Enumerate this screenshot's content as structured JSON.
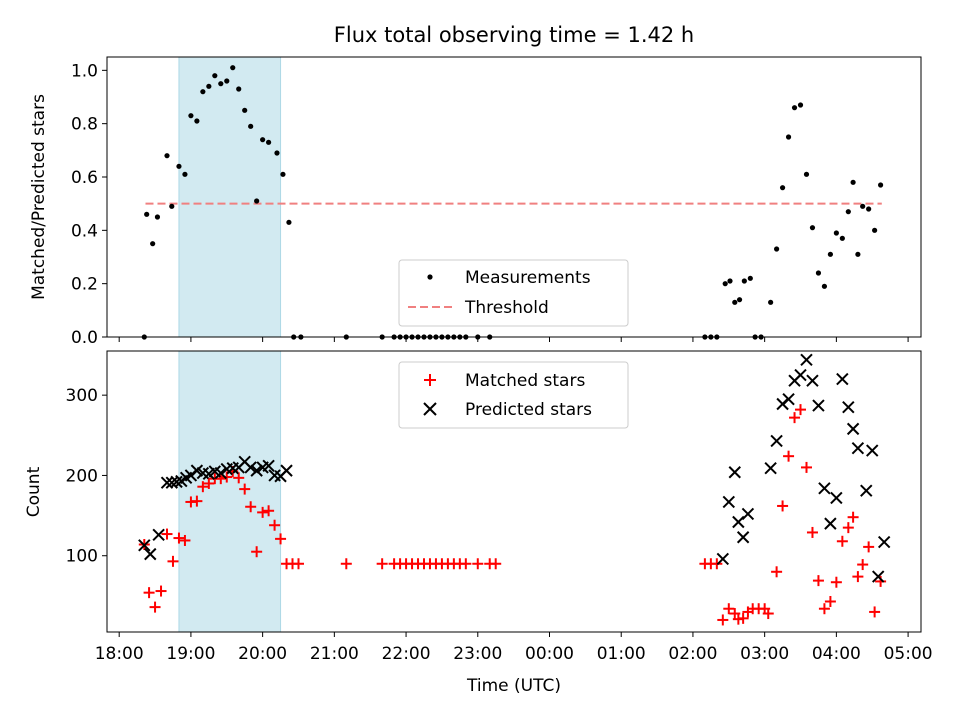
{
  "figure_title": "Flux total observing time = 1.42 h",
  "chart_data": [
    {
      "type": "scatter",
      "title": "Flux total observing time = 1.42 h",
      "xlabel": "",
      "ylabel": "Matched/Predicted stars",
      "xlim": [
        "18:00",
        "05:00"
      ],
      "ylim": [
        0,
        1.05
      ],
      "yticks": [
        "0.0",
        "0.2",
        "0.4",
        "0.6",
        "0.8",
        "1.0"
      ],
      "shaded_interval": [
        "18:50",
        "20:15"
      ],
      "shade_color": "#add8e6",
      "legend_position": "bottom-center",
      "threshold": {
        "name": "Threshold",
        "value": 0.5,
        "x_from": "18:22",
        "x_to": "04:38",
        "color": "#f08080",
        "style": "dashed"
      },
      "series": [
        {
          "name": "Measurements",
          "marker": "dot",
          "color": "#000000",
          "points": [
            [
              "18:21",
              0.0
            ],
            [
              "18:23",
              0.46
            ],
            [
              "18:28",
              0.35
            ],
            [
              "18:32",
              0.45
            ],
            [
              "18:40",
              0.68
            ],
            [
              "18:44",
              0.49
            ],
            [
              "18:50",
              0.64
            ],
            [
              "18:55",
              0.61
            ],
            [
              "19:00",
              0.83
            ],
            [
              "19:05",
              0.81
            ],
            [
              "19:10",
              0.92
            ],
            [
              "19:15",
              0.94
            ],
            [
              "19:20",
              0.98
            ],
            [
              "19:25",
              0.95
            ],
            [
              "19:30",
              0.96
            ],
            [
              "19:35",
              1.01
            ],
            [
              "19:40",
              0.93
            ],
            [
              "19:45",
              0.85
            ],
            [
              "19:50",
              0.79
            ],
            [
              "19:55",
              0.51
            ],
            [
              "20:00",
              0.74
            ],
            [
              "20:05",
              0.73
            ],
            [
              "20:12",
              0.69
            ],
            [
              "20:17",
              0.61
            ],
            [
              "20:22",
              0.43
            ],
            [
              "20:26",
              0.0
            ],
            [
              "20:32",
              0.0
            ],
            [
              "21:10",
              0.0
            ],
            [
              "21:40",
              0.0
            ],
            [
              "21:50",
              0.0
            ],
            [
              "21:55",
              0.0
            ],
            [
              "22:00",
              0.0
            ],
            [
              "22:05",
              0.0
            ],
            [
              "22:10",
              0.0
            ],
            [
              "22:15",
              0.0
            ],
            [
              "22:20",
              0.0
            ],
            [
              "22:25",
              0.0
            ],
            [
              "22:30",
              0.0
            ],
            [
              "22:35",
              0.0
            ],
            [
              "22:40",
              0.0
            ],
            [
              "22:45",
              0.0
            ],
            [
              "22:50",
              0.0
            ],
            [
              "23:00",
              0.0
            ],
            [
              "23:10",
              0.0
            ],
            [
              "02:10",
              0.0
            ],
            [
              "02:15",
              0.0
            ],
            [
              "02:20",
              0.0
            ],
            [
              "02:27",
              0.2
            ],
            [
              "02:31",
              0.21
            ],
            [
              "02:35",
              0.13
            ],
            [
              "02:39",
              0.14
            ],
            [
              "02:43",
              0.21
            ],
            [
              "02:48",
              0.22
            ],
            [
              "02:52",
              0.0
            ],
            [
              "02:57",
              0.0
            ],
            [
              "03:05",
              0.13
            ],
            [
              "03:10",
              0.33
            ],
            [
              "03:15",
              0.56
            ],
            [
              "03:20",
              0.75
            ],
            [
              "03:25",
              0.86
            ],
            [
              "03:30",
              0.87
            ],
            [
              "03:35",
              0.61
            ],
            [
              "03:40",
              0.41
            ],
            [
              "03:45",
              0.24
            ],
            [
              "03:50",
              0.19
            ],
            [
              "03:55",
              0.31
            ],
            [
              "04:00",
              0.39
            ],
            [
              "04:05",
              0.37
            ],
            [
              "04:10",
              0.47
            ],
            [
              "04:14",
              0.58
            ],
            [
              "04:18",
              0.31
            ],
            [
              "04:22",
              0.49
            ],
            [
              "04:27",
              0.48
            ],
            [
              "04:32",
              0.4
            ],
            [
              "04:37",
              0.57
            ]
          ]
        }
      ]
    },
    {
      "type": "scatter",
      "title": "",
      "xlabel": "Time (UTC)",
      "ylabel": "Count",
      "xlim": [
        "18:00",
        "05:00"
      ],
      "ylim": [
        5,
        355
      ],
      "yticks": [
        "100",
        "200",
        "300"
      ],
      "xticks": [
        "18:00",
        "19:00",
        "20:00",
        "21:00",
        "22:00",
        "23:00",
        "00:00",
        "01:00",
        "02:00",
        "03:00",
        "04:00",
        "05:00"
      ],
      "shaded_interval": [
        "18:50",
        "20:15"
      ],
      "shade_color": "#add8e6",
      "legend_position": "top-center",
      "series": [
        {
          "name": "Matched stars",
          "marker": "plus",
          "color": "#ff0000",
          "points": [
            [
              "18:21",
              114
            ],
            [
              "18:25",
              54
            ],
            [
              "18:30",
              36
            ],
            [
              "18:35",
              56
            ],
            [
              "18:40",
              127
            ],
            [
              "18:45",
              93
            ],
            [
              "18:50",
              122
            ],
            [
              "18:55",
              119
            ],
            [
              "19:00",
              167
            ],
            [
              "19:05",
              168
            ],
            [
              "19:10",
              186
            ],
            [
              "19:15",
              190
            ],
            [
              "19:20",
              196
            ],
            [
              "19:25",
              196
            ],
            [
              "19:30",
              198
            ],
            [
              "19:35",
              205
            ],
            [
              "19:40",
              197
            ],
            [
              "19:45",
              183
            ],
            [
              "19:50",
              161
            ],
            [
              "19:55",
              105
            ],
            [
              "20:00",
              154
            ],
            [
              "20:05",
              156
            ],
            [
              "20:10",
              138
            ],
            [
              "20:15",
              121
            ],
            [
              "20:20",
              90
            ],
            [
              "20:25",
              90
            ],
            [
              "20:30",
              90
            ],
            [
              "21:10",
              90
            ],
            [
              "21:40",
              90
            ],
            [
              "21:50",
              90
            ],
            [
              "21:55",
              90
            ],
            [
              "22:00",
              90
            ],
            [
              "22:05",
              90
            ],
            [
              "22:10",
              90
            ],
            [
              "22:15",
              90
            ],
            [
              "22:20",
              90
            ],
            [
              "22:25",
              90
            ],
            [
              "22:30",
              90
            ],
            [
              "22:35",
              90
            ],
            [
              "22:40",
              90
            ],
            [
              "22:45",
              90
            ],
            [
              "22:50",
              90
            ],
            [
              "23:00",
              90
            ],
            [
              "23:10",
              90
            ],
            [
              "23:15",
              90
            ],
            [
              "02:10",
              90
            ],
            [
              "02:15",
              90
            ],
            [
              "02:20",
              90
            ],
            [
              "02:25",
              20
            ],
            [
              "02:30",
              34
            ],
            [
              "02:35",
              28
            ],
            [
              "02:38",
              21
            ],
            [
              "02:42",
              22
            ],
            [
              "02:46",
              30
            ],
            [
              "02:50",
              34
            ],
            [
              "02:55",
              34
            ],
            [
              "03:00",
              34
            ],
            [
              "03:03",
              28
            ],
            [
              "03:10",
              80
            ],
            [
              "03:15",
              162
            ],
            [
              "03:20",
              224
            ],
            [
              "03:25",
              272
            ],
            [
              "03:30",
              282
            ],
            [
              "03:35",
              210
            ],
            [
              "03:40",
              129
            ],
            [
              "03:45",
              69
            ],
            [
              "03:50",
              34
            ],
            [
              "03:55",
              43
            ],
            [
              "04:00",
              67
            ],
            [
              "04:05",
              118
            ],
            [
              "04:10",
              135
            ],
            [
              "04:14",
              148
            ],
            [
              "04:18",
              74
            ],
            [
              "04:22",
              89
            ],
            [
              "04:27",
              111
            ],
            [
              "04:32",
              30
            ],
            [
              "04:37",
              68
            ]
          ]
        },
        {
          "name": "Predicted stars",
          "marker": "x",
          "color": "#000000",
          "points": [
            [
              "18:21",
              113
            ],
            [
              "18:26",
              102
            ],
            [
              "18:33",
              126
            ],
            [
              "18:40",
              191
            ],
            [
              "18:44",
              191
            ],
            [
              "18:48",
              192
            ],
            [
              "18:52",
              193
            ],
            [
              "18:56",
              197
            ],
            [
              "19:00",
              200
            ],
            [
              "19:05",
              206
            ],
            [
              "19:10",
              203
            ],
            [
              "19:15",
              202
            ],
            [
              "19:20",
              205
            ],
            [
              "19:25",
              203
            ],
            [
              "19:30",
              208
            ],
            [
              "19:35",
              209
            ],
            [
              "19:40",
              210
            ],
            [
              "19:45",
              217
            ],
            [
              "19:50",
              210
            ],
            [
              "19:55",
              206
            ],
            [
              "20:00",
              210
            ],
            [
              "20:05",
              212
            ],
            [
              "20:10",
              200
            ],
            [
              "20:15",
              199
            ],
            [
              "20:20",
              206
            ],
            [
              "02:25",
              96
            ],
            [
              "02:30",
              167
            ],
            [
              "02:35",
              204
            ],
            [
              "02:38",
              142
            ],
            [
              "02:42",
              123
            ],
            [
              "02:46",
              152
            ],
            [
              "03:05",
              209
            ],
            [
              "03:10",
              243
            ],
            [
              "03:15",
              289
            ],
            [
              "03:20",
              295
            ],
            [
              "03:25",
              318
            ],
            [
              "03:30",
              325
            ],
            [
              "03:35",
              344
            ],
            [
              "03:40",
              318
            ],
            [
              "03:45",
              287
            ],
            [
              "03:50",
              184
            ],
            [
              "03:55",
              140
            ],
            [
              "04:00",
              172
            ],
            [
              "04:05",
              320
            ],
            [
              "04:10",
              285
            ],
            [
              "04:14",
              258
            ],
            [
              "04:18",
              234
            ],
            [
              "04:25",
              181
            ],
            [
              "04:30",
              231
            ],
            [
              "04:35",
              74
            ],
            [
              "04:40",
              117
            ]
          ]
        }
      ]
    }
  ]
}
